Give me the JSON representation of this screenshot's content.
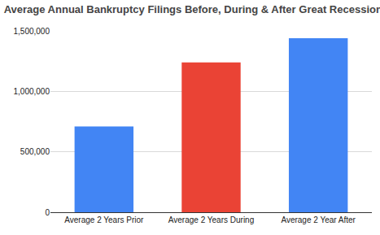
{
  "chart_data": {
    "type": "bar",
    "title": "Average Annual Bankruptcy Filings Before, During & After Great Recession",
    "categories": [
      "Average 2 Years Prior",
      "Average 2 Years During",
      "Average 2 Year After"
    ],
    "values": [
      710000,
      1240000,
      1440000
    ],
    "colors": [
      "#4285f4",
      "#ea4335",
      "#4285f4"
    ],
    "ylim": [
      0,
      1500000
    ],
    "yticks": [
      0,
      {
        "value": 500000,
        "label": "500,000"
      },
      {
        "value": 1000000,
        "label": "1,000,000"
      },
      {
        "value": 1500000,
        "label": "1,500,000"
      }
    ],
    "grid": true
  }
}
